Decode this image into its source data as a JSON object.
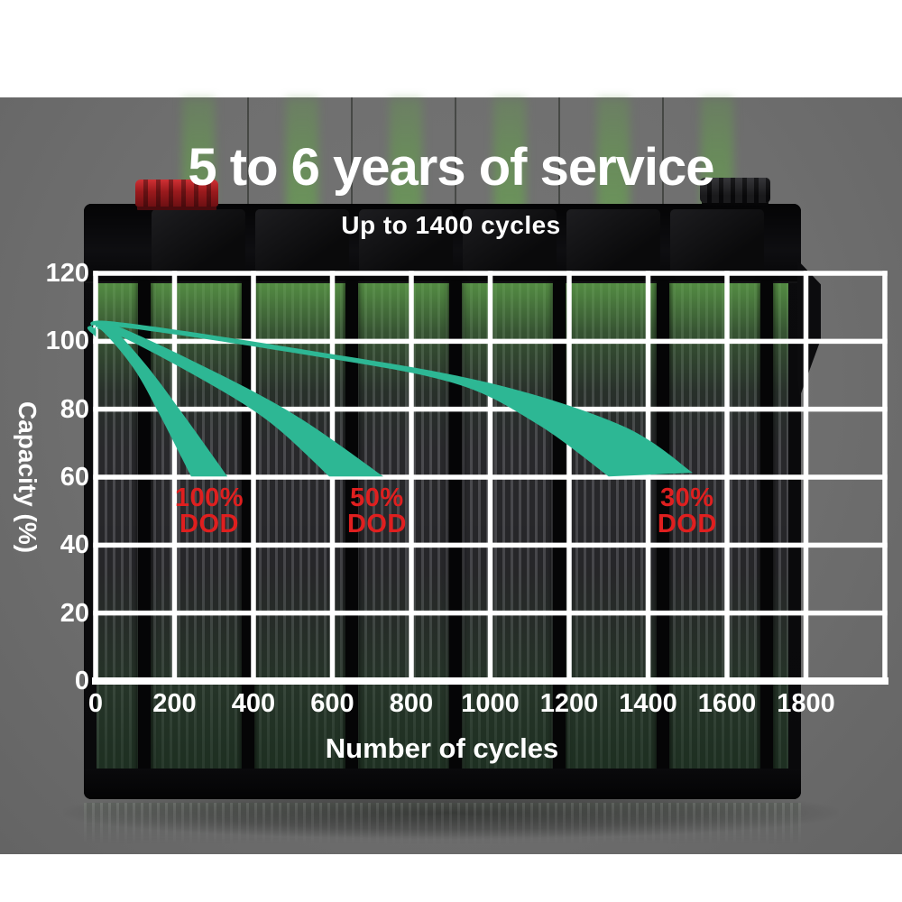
{
  "page": {
    "background_color": "#ffffff",
    "photo_background_color": "#6f6f6f"
  },
  "header": {
    "title": "5 to 6 years of service",
    "subtitle": "Up to 1400 cycles"
  },
  "chart_data": {
    "type": "area",
    "title": "5 to 6 years of service",
    "subtitle": "Up to 1400 cycles",
    "xlabel": "Number of cycles",
    "ylabel": "Capacity (%)",
    "xlim": [
      0,
      2000
    ],
    "ylim": [
      0,
      120
    ],
    "x_ticks": [
      0,
      200,
      400,
      600,
      800,
      1000,
      1200,
      1400,
      1600,
      1800
    ],
    "y_ticks": [
      0,
      20,
      40,
      60,
      80,
      100,
      120
    ],
    "grid": true,
    "legend_position": "none",
    "grid_color": "#ffffff",
    "band_color": "#2db794",
    "annotation_color": "#df1f1f",
    "tick_color": "#ffffff",
    "series": [
      {
        "name": "100% DOD",
        "description": "capacity fades from ~105% to 60% by ~330 cycles",
        "band_top": [
          [
            0,
            102.5
          ],
          [
            27,
            105.4
          ],
          [
            123,
            93.7
          ],
          [
            226,
            77.8
          ],
          [
            334,
            60.2
          ]
        ],
        "band_bottom": [
          [
            0,
            101.2
          ],
          [
            14,
            103.3
          ],
          [
            96,
            92.1
          ],
          [
            165,
            77.8
          ],
          [
            242,
            60.2
          ]
        ],
        "annotation": {
          "lines": [
            "100%",
            "DOD"
          ],
          "x": 288,
          "y": 50
        }
      },
      {
        "name": "50% DOD",
        "description": "capacity fades from ~105% to 60% by ~730 cycles",
        "band_top": [
          [
            0,
            102.5
          ],
          [
            32,
            105.4
          ],
          [
            283,
            92.1
          ],
          [
            512,
            77.8
          ],
          [
            729,
            60.2
          ]
        ],
        "band_bottom": [
          [
            0,
            101.2
          ],
          [
            18,
            103.8
          ],
          [
            226,
            91.6
          ],
          [
            432,
            77.0
          ],
          [
            592,
            60.2
          ]
        ],
        "annotation": {
          "lines": [
            "50%",
            "DOD"
          ],
          "x": 713,
          "y": 50
        }
      },
      {
        "name": "30% DOD",
        "description": "capacity fades from ~106% to 60% by ~1500 cycles",
        "band_top": [
          [
            0,
            103.0
          ],
          [
            37,
            105.9
          ],
          [
            535,
            97.4
          ],
          [
            992,
            87.9
          ],
          [
            1335,
            75.1
          ],
          [
            1513,
            61.3
          ]
        ],
        "band_bottom": [
          [
            0,
            101.2
          ],
          [
            23,
            104.6
          ],
          [
            512,
            96.4
          ],
          [
            901,
            87.9
          ],
          [
            1118,
            75.7
          ],
          [
            1300,
            60.2
          ]
        ],
        "annotation": {
          "lines": [
            "30%",
            "DOD"
          ],
          "x": 1499,
          "y": 50
        }
      }
    ]
  },
  "battery": {
    "cell_count": 6,
    "positive_terminal_color": "#b01d20",
    "negative_terminal_color": "#17171a",
    "cell_glow_color": "#60a84a"
  }
}
